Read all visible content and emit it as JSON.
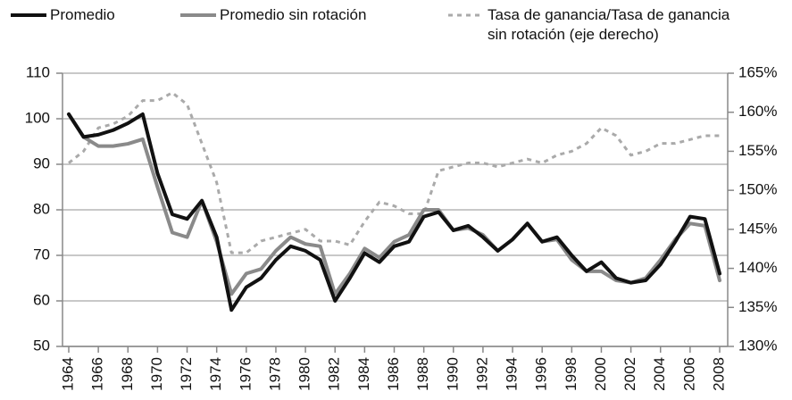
{
  "chart_data": {
    "type": "line",
    "x": [
      1964,
      1965,
      1966,
      1967,
      1968,
      1969,
      1970,
      1971,
      1972,
      1973,
      1974,
      1975,
      1976,
      1977,
      1978,
      1979,
      1980,
      1981,
      1982,
      1983,
      1984,
      1985,
      1986,
      1987,
      1988,
      1989,
      1990,
      1991,
      1992,
      1993,
      1994,
      1995,
      1996,
      1997,
      1998,
      1999,
      2000,
      2001,
      2002,
      2003,
      2004,
      2005,
      2006,
      2007,
      2008
    ],
    "series": [
      {
        "name": "Promedio",
        "color": "#111111",
        "values": [
          101,
          96,
          96.5,
          97.5,
          99,
          101,
          88,
          79,
          78,
          82,
          74,
          58,
          63,
          65,
          69,
          72,
          71,
          69,
          60,
          65,
          70.5,
          68.5,
          72,
          73,
          78.5,
          79.5,
          75.5,
          76.5,
          74,
          71,
          73.5,
          77,
          73,
          74,
          70,
          66.5,
          68.5,
          65,
          64,
          64.5,
          68,
          73,
          78.5,
          78,
          66
        ]
      },
      {
        "name": "Promedio sin rotación",
        "color": "#8a8a8a",
        "values": [
          101,
          96,
          94,
          94,
          94.5,
          95.5,
          85,
          75,
          74,
          82,
          73,
          61.5,
          66,
          67,
          71,
          74,
          72.5,
          72,
          61.5,
          66,
          71.5,
          69.5,
          73,
          74.5,
          80,
          80,
          75.5,
          76,
          74.5,
          71,
          73.5,
          77,
          73,
          73.5,
          69,
          66.5,
          66.5,
          64.5,
          64,
          65,
          69,
          73.5,
          77,
          76.5,
          64.5
        ]
      },
      {
        "name": "Tasa de ganancia/Tasa de ganancia sin rotación (eje derecho)",
        "color": "#aaaaaa",
        "axis": "y2",
        "dashed": true,
        "values": [
          153.5,
          155,
          158,
          158.5,
          159.5,
          161.5,
          161.5,
          162.5,
          161,
          156,
          151,
          142,
          142,
          143.5,
          144,
          144.5,
          145,
          143.5,
          143.5,
          143,
          146,
          148.5,
          148,
          147,
          147,
          152.5,
          153,
          153.5,
          153.5,
          153,
          153.5,
          154,
          153.5,
          154.5,
          155,
          156,
          158,
          157,
          154.5,
          155,
          156,
          156,
          156.5,
          157,
          157
        ]
      }
    ],
    "xlim": [
      1964,
      2008
    ],
    "xticks": [
      1964,
      1966,
      1968,
      1970,
      1972,
      1974,
      1976,
      1978,
      1980,
      1982,
      1984,
      1986,
      1988,
      1990,
      1992,
      1994,
      1996,
      1998,
      2000,
      2002,
      2004,
      2006,
      2008
    ],
    "ylim": [
      50,
      110
    ],
    "yticks": [
      50,
      60,
      70,
      80,
      90,
      100,
      110
    ],
    "y2lim": [
      130,
      165
    ],
    "y2ticks": [
      {
        "value": 130,
        "label": "130%"
      },
      {
        "value": 135,
        "label": "135%"
      },
      {
        "value": 140,
        "label": "140%"
      },
      {
        "value": 145,
        "label": "145%"
      },
      {
        "value": 150,
        "label": "150%"
      },
      {
        "value": 155,
        "label": "155%"
      },
      {
        "value": 160,
        "label": "160%"
      },
      {
        "value": 165,
        "label": "165%"
      }
    ],
    "grid": true
  }
}
